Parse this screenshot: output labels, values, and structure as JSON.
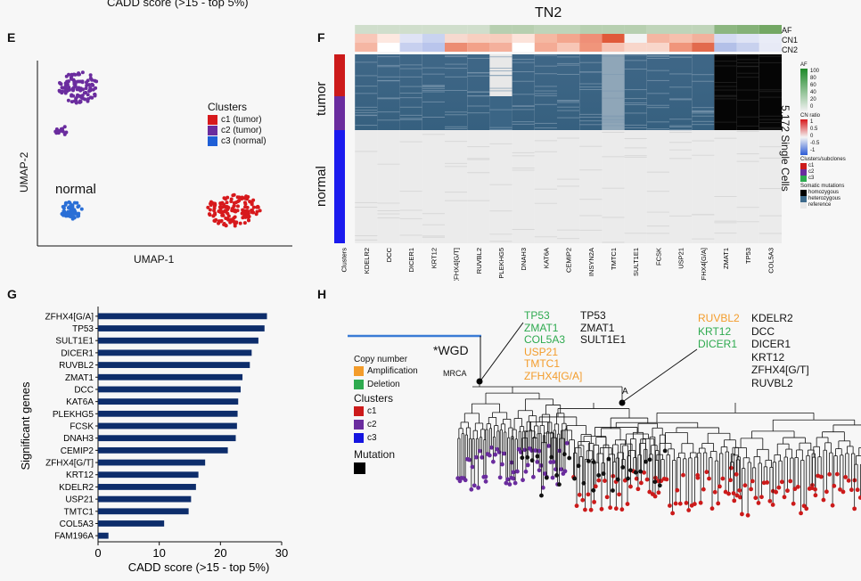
{
  "top_caption": "CADD score  (>15 - top 5%)",
  "panels": {
    "E": "E",
    "F": "F",
    "G": "G",
    "H": "H"
  },
  "panel_e": {
    "x_label": "UMAP-1",
    "y_label": "UMAP-2",
    "normal_label": "normal",
    "legend_title": "Clusters",
    "legend": [
      {
        "label": "c1 (tumor)",
        "color": "#d7191c"
      },
      {
        "label": "c2 (tumor)",
        "color": "#6a2c9e"
      },
      {
        "label": "c3 (normal)",
        "color": "#1f5fd6"
      }
    ]
  },
  "panel_f": {
    "title": "TN2",
    "track_labels": [
      "AF",
      "CN1",
      "CN2"
    ],
    "row_labels": [
      "tumor",
      "normal"
    ],
    "cells_label": "5,172 Single Cells",
    "columns": [
      "Clusters",
      "KDELR2",
      "DCC",
      "DICER1",
      "KRT12",
      "ZFHX4[G/T]",
      "RUVBL2",
      "PLEKHG5",
      "DNAH3",
      "KAT6A",
      "CEMIP2",
      "INSYN2A",
      "TMTC1",
      "SULT1E1",
      "FCSK",
      "USP21",
      "ZFHX4[G/A]",
      "ZMAT1",
      "TP53",
      "COL5A3"
    ],
    "legend": {
      "af_title": "AF",
      "af_ticks": [
        "100",
        "80",
        "60",
        "40",
        "20",
        "0"
      ],
      "cn_title": "CN ratio",
      "cn_ticks": [
        "1",
        "0.5",
        "0",
        "-0.5",
        "-1"
      ],
      "clusters_title": "Clusters/subclones",
      "clusters": [
        "c1",
        "c2",
        "c3"
      ],
      "mut_title": "Somatic mutations",
      "mutations": [
        "homozygous",
        "heterozygous",
        "reference"
      ]
    }
  },
  "chart_data": {
    "type": "bar",
    "orientation": "horizontal",
    "title": "",
    "xlabel": "CADD score  (>15 - top 5%)",
    "ylabel": "Significant genes",
    "xlim": [
      0,
      30
    ],
    "xticks": [
      "0",
      "10",
      "20",
      "30"
    ],
    "categories": [
      "ZFHX4[G/A]",
      "TP53",
      "SULT1E1",
      "DICER1",
      "RUVBL2",
      "ZMAT1",
      "DCC",
      "KAT6A",
      "PLEKHG5",
      "FCSK",
      "DNAH3",
      "CEMIP2",
      "ZFHX4[G/T]",
      "KRT12",
      "KDELR2",
      "USP21",
      "TMTC1",
      "COL5A3",
      "FAM196A"
    ],
    "values": [
      27.6,
      27.2,
      26.2,
      25.1,
      24.8,
      23.6,
      23.3,
      22.9,
      22.8,
      22.7,
      22.5,
      21.2,
      17.5,
      16.4,
      16.0,
      15.2,
      14.8,
      10.8,
      1.7
    ],
    "bar_color": "#0d2d6b"
  },
  "panel_h": {
    "wgd_label": "*WGD",
    "mrca_label": "MRCA",
    "a_label": "A",
    "legend": {
      "copy_number_title": "Copy number",
      "amplification": "Amplification",
      "deletion": "Deletion",
      "clusters_title": "Clusters",
      "clusters": [
        "c1",
        "c2",
        "c3"
      ],
      "mutation_title": "Mutation"
    },
    "colors": {
      "amp": "#f39c2b",
      "del": "#2eaa4f",
      "c1": "#cc1a1a",
      "c2": "#6a2c9e",
      "c3": "#1515e0"
    },
    "wgd_genes": {
      "deletion": [
        "TP53",
        "ZMAT1",
        "COL5A3"
      ],
      "amplification": [
        "USP21",
        "TMTC1",
        "ZFHX4[G/A]"
      ],
      "mutation": [
        "TP53",
        "ZMAT1",
        "SULT1E1"
      ]
    },
    "a_genes": {
      "amplification": [
        "RUVBL2"
      ],
      "deletion": [
        "KRT12",
        "DICER1"
      ],
      "mutation": [
        "KDELR2",
        "DCC",
        "DICER1",
        "KRT12",
        "ZFHX4[G/T]",
        "RUVBL2"
      ]
    }
  }
}
